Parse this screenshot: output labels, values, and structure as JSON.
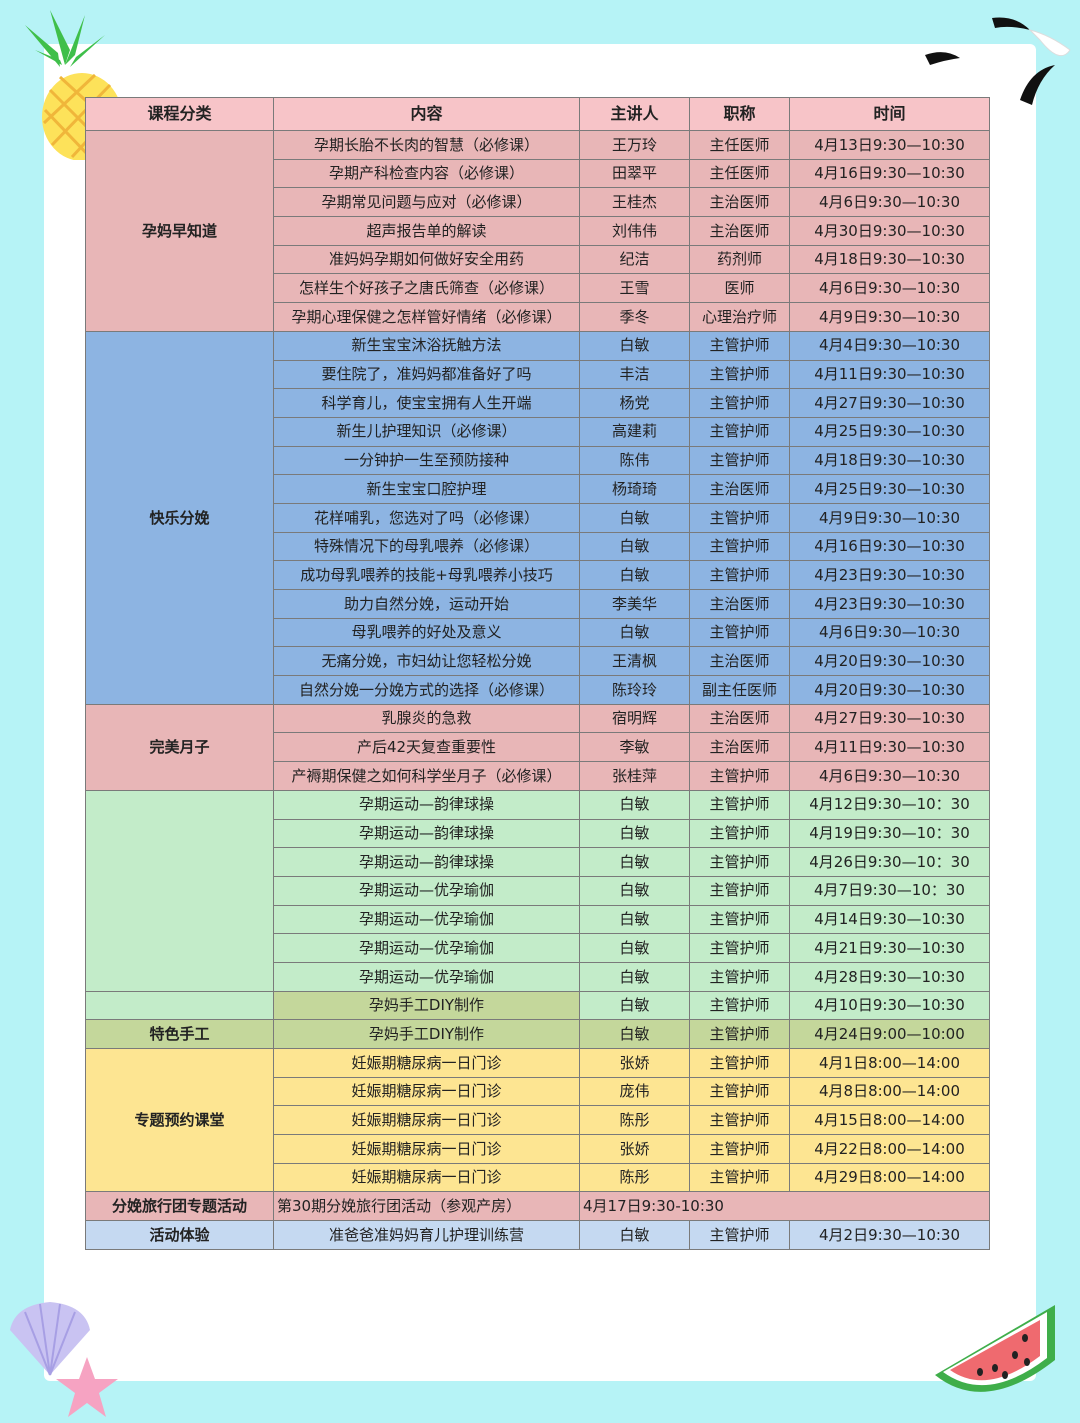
{
  "headers": [
    "课程分类",
    "内容",
    "主讲人",
    "职称",
    "时间"
  ],
  "categories": {
    "pregnancy": "孕妈早知道",
    "delivery": "快乐分娩",
    "postpartum": "完美月子",
    "handcraft": "特色手工",
    "special": "专题预约课堂",
    "travel": "分娩旅行团专题活动",
    "experience": "活动体验"
  },
  "rows": [
    [
      "孕期长胎不长肉的智慧（必修课）",
      "王万玲",
      "主任医师",
      "4月13日9:30—10:30"
    ],
    [
      "孕期产科检查内容（必修课）",
      "田翠平",
      "主任医师",
      "4月16日9:30—10:30"
    ],
    [
      "孕期常见问题与应对（必修课）",
      "王桂杰",
      "主治医师",
      "4月6日9:30—10:30"
    ],
    [
      "超声报告单的解读",
      "刘伟伟",
      "主治医师",
      "4月30日9:30—10:30"
    ],
    [
      "准妈妈孕期如何做好安全用药",
      "纪洁",
      "药剂师",
      "4月18日9:30—10:30"
    ],
    [
      "怎样生个好孩子之唐氏筛查（必修课）",
      "王雪",
      "医师",
      "4月6日9:30—10:30"
    ],
    [
      "孕期心理保健之怎样管好情绪（必修课）",
      "季冬",
      "心理治疗师",
      "4月9日9:30—10:30"
    ],
    [
      "新生宝宝沐浴抚触方法",
      "白敏",
      "主管护师",
      "4月4日9:30—10:30"
    ],
    [
      "要住院了，准妈妈都准备好了吗",
      "丰洁",
      "主管护师",
      "4月11日9:30—10:30"
    ],
    [
      "科学育儿，使宝宝拥有人生开端",
      "杨党",
      "主管护师",
      "4月27日9:30—10:30"
    ],
    [
      "新生儿护理知识（必修课）",
      "高建莉",
      "主管护师",
      "4月25日9:30—10:30"
    ],
    [
      "一分钟护一生至预防接种",
      "陈伟",
      "主管护师",
      "4月18日9:30—10:30"
    ],
    [
      "新生宝宝口腔护理",
      "杨琦琦",
      "主治医师",
      "4月25日9:30—10:30"
    ],
    [
      "花样哺乳，您选对了吗（必修课）",
      "白敏",
      "主管护师",
      "4月9日9:30—10:30"
    ],
    [
      "特殊情况下的母乳喂养（必修课）",
      "白敏",
      "主管护师",
      "4月16日9:30—10:30"
    ],
    [
      "成功母乳喂养的技能+母乳喂养小技巧",
      "白敏",
      "主管护师",
      "4月23日9:30—10:30"
    ],
    [
      "助力自然分娩，运动开始",
      "李美华",
      "主治医师",
      "4月23日9:30—10:30"
    ],
    [
      "母乳喂养的好处及意义",
      "白敏",
      "主管护师",
      "4月6日9:30—10:30"
    ],
    [
      "无痛分娩，市妇幼让您轻松分娩",
      "王清枫",
      "主治医师",
      "4月20日9:30—10:30"
    ],
    [
      "自然分娩一分娩方式的选择（必修课）",
      "陈玲玲",
      "副主任医师",
      "4月20日9:30—10:30"
    ],
    [
      "乳腺炎的急救",
      "宿明辉",
      "主治医师",
      "4月27日9:30—10:30"
    ],
    [
      "产后42天复查重要性",
      "李敏",
      "主治医师",
      "4月11日9:30—10:30"
    ],
    [
      "产褥期保健之如何科学坐月子（必修课）",
      "张桂萍",
      "主管护师",
      "4月6日9:30—10:30"
    ],
    [
      "孕期运动—韵律球操",
      "白敏",
      "主管护师",
      "4月12日9:30—10：30"
    ],
    [
      "孕期运动—韵律球操",
      "白敏",
      "主管护师",
      "4月19日9:30—10：30"
    ],
    [
      "孕期运动—韵律球操",
      "白敏",
      "主管护师",
      "4月26日9:30—10：30"
    ],
    [
      "孕期运动—优孕瑜伽",
      "白敏",
      "主管护师",
      "4月7日9:30—10：30"
    ],
    [
      "孕期运动—优孕瑜伽",
      "白敏",
      "主管护师",
      "4月14日9:30—10:30"
    ],
    [
      "孕期运动—优孕瑜伽",
      "白敏",
      "主管护师",
      "4月21日9:30—10:30"
    ],
    [
      "孕期运动—优孕瑜伽",
      "白敏",
      "主管护师",
      "4月28日9:30—10:30"
    ],
    [
      "孕妈手工DIY制作",
      "白敏",
      "主管护师",
      "4月10日9:30—10:30"
    ],
    [
      "孕妈手工DIY制作",
      "白敏",
      "主管护师",
      "4月24日9:00—10:00"
    ],
    [
      "妊娠期糖尿病一日门诊",
      "张娇",
      "主管护师",
      "4月1日8:00—14:00"
    ],
    [
      "妊娠期糖尿病一日门诊",
      "庞伟",
      "主管护师",
      "4月8日8:00—14:00"
    ],
    [
      "妊娠期糖尿病一日门诊",
      "陈彤",
      "主管护师",
      "4月15日8:00—14:00"
    ],
    [
      "妊娠期糖尿病一日门诊",
      "张娇",
      "主管护师",
      "4月22日8:00—14:00"
    ],
    [
      "妊娠期糖尿病一日门诊",
      "陈彤",
      "主管护师",
      "4月29日8:00—14:00"
    ]
  ],
  "travel": {
    "content": "第30期分娩旅行团活动（参观产房）",
    "time": "4月17日9:30-10:30"
  },
  "experience": {
    "content": "准爸爸准妈妈育儿护理训练营",
    "speaker": "白敏",
    "title": "主管护师",
    "time": "4月2日9:30—10:30"
  },
  "colors": {
    "background": "#b6f3f6",
    "pink": "#e8b6b7",
    "header": "#f7c4c8",
    "blue": "#8db4e2",
    "green": "#c3ecc9",
    "olive": "#c4d79b",
    "yellow": "#fde592",
    "light_blue": "#c5d9f1"
  },
  "decorations": [
    "pineapple-icon",
    "seagull-icon",
    "seashell-icon",
    "starfish-icon",
    "watermelon-icon"
  ]
}
